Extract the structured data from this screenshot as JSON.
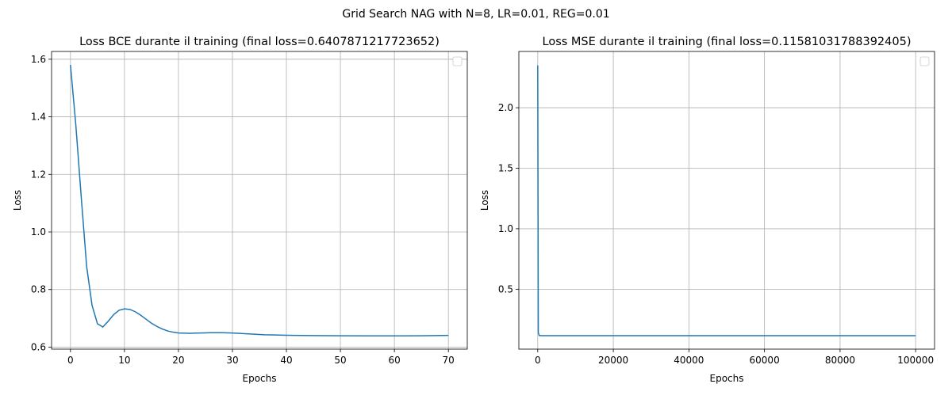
{
  "suptitle": "Grid Search NAG with N=8, LR=0.01, REG=0.01",
  "chart_data": [
    {
      "type": "line",
      "title": "Loss BCE durante il training (final loss=0.6407871217723652)",
      "xlabel": "Epochs",
      "ylabel": "Loss",
      "xlim": [
        -3.5,
        73.5
      ],
      "ylim": [
        0.593,
        1.627
      ],
      "xticks": [
        "0",
        "10",
        "20",
        "30",
        "40",
        "50",
        "60",
        "70"
      ],
      "yticks": [
        "0.6",
        "0.8",
        "1.0",
        "1.2",
        "1.4",
        "1.6"
      ],
      "grid": true,
      "legend": "top-right (empty)",
      "series": [
        {
          "color": "#1f77b4",
          "x": [
            0,
            1,
            2,
            3,
            4,
            5,
            6,
            7,
            8,
            9,
            10,
            11,
            12,
            13,
            14,
            15,
            16,
            17,
            18,
            19,
            20,
            22,
            24,
            26,
            28,
            30,
            32,
            34,
            36,
            38,
            40,
            45,
            50,
            55,
            60,
            65,
            70
          ],
          "y": [
            1.58,
            1.37,
            1.12,
            0.88,
            0.745,
            0.681,
            0.67,
            0.69,
            0.713,
            0.728,
            0.733,
            0.731,
            0.723,
            0.711,
            0.697,
            0.683,
            0.672,
            0.663,
            0.656,
            0.652,
            0.649,
            0.648,
            0.649,
            0.65,
            0.65,
            0.649,
            0.647,
            0.645,
            0.643,
            0.642,
            0.641,
            0.64,
            0.6395,
            0.6392,
            0.639,
            0.6395,
            0.6408
          ]
        }
      ]
    },
    {
      "type": "line",
      "title": "Loss MSE durante il training (final loss=0.11581031788392405)",
      "xlabel": "Epochs",
      "ylabel": "Loss",
      "xlim": [
        -5000,
        105000
      ],
      "ylim": [
        0.005,
        2.465
      ],
      "xticks": [
        "0",
        "20000",
        "40000",
        "60000",
        "80000",
        "100000"
      ],
      "yticks": [
        "0.5",
        "1.0",
        "1.5",
        "2.0"
      ],
      "grid": true,
      "legend": "top-right (empty)",
      "series": [
        {
          "color": "#1f77b4",
          "x": [
            0,
            150,
            400,
            1000,
            5000,
            20000,
            50000,
            100000
          ],
          "y": [
            2.35,
            0.14,
            0.118,
            0.1165,
            0.116,
            0.1159,
            0.1158,
            0.1158
          ]
        }
      ]
    }
  ]
}
